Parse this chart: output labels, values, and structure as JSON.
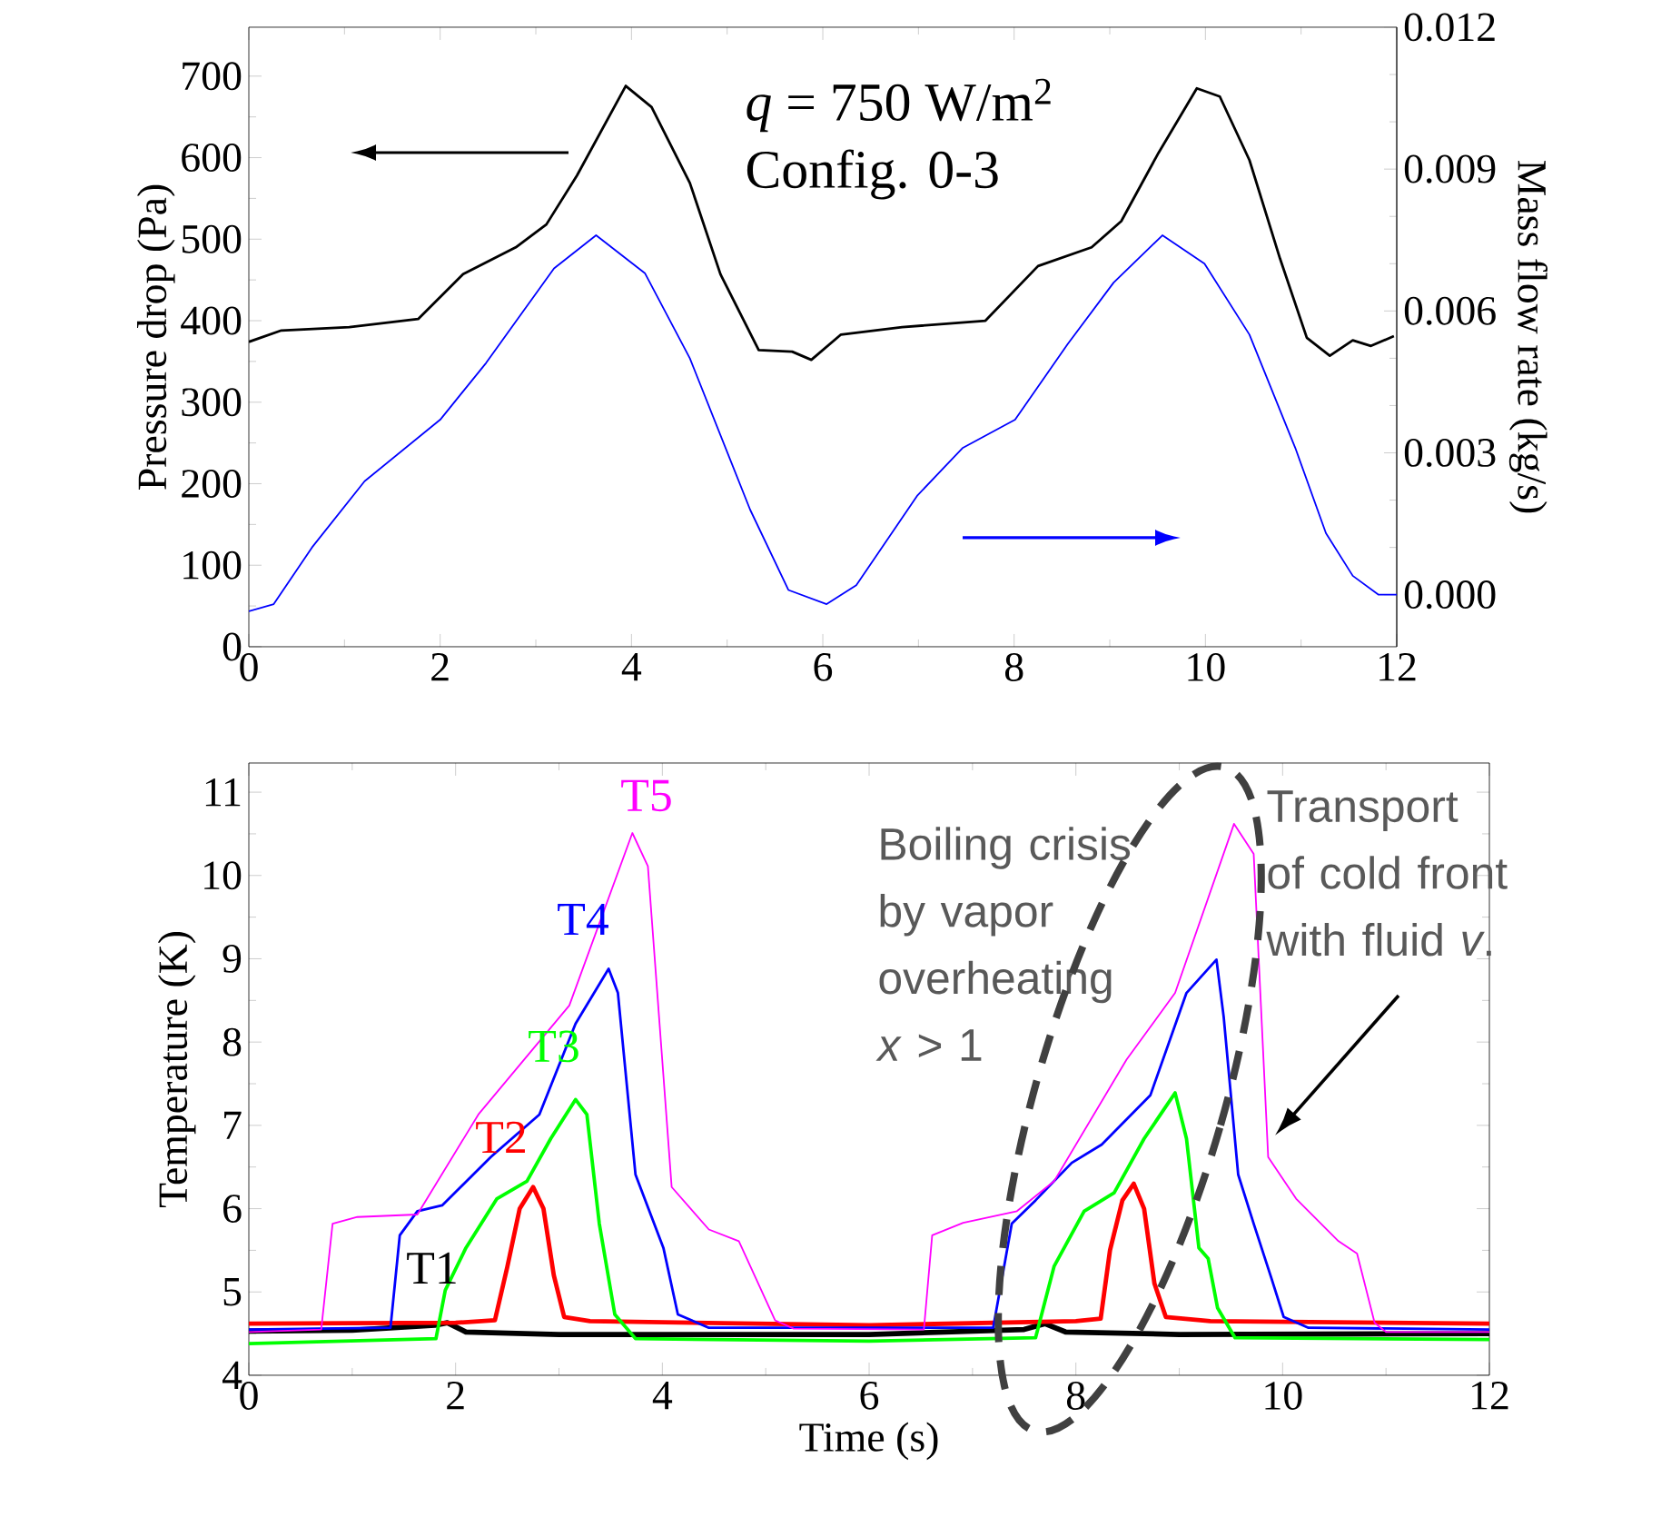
{
  "chart_data": [
    {
      "type": "line",
      "ylabel": "Pressure drop (Pa)",
      "y2label": "Mass flow rate (kg/s)",
      "xlim": [
        0,
        12
      ],
      "xticks": [
        0,
        2,
        4,
        6,
        8,
        10,
        12
      ],
      "ylim": [
        0,
        760
      ],
      "yticks": [
        0,
        100,
        200,
        300,
        400,
        500,
        600,
        700
      ],
      "y2lim": [
        -0.0011,
        0.012
      ],
      "y2ticks": [
        {
          "value": 0,
          "label": "0.000"
        },
        0.003,
        0.006,
        0.009,
        0.012
      ],
      "annotations": [
        "*q* = 750 W/m$^{2}$",
        "Config. 0-3"
      ],
      "series": [
        {
          "color": "#000000",
          "x": [
            0,
            0.34,
            1.05,
            1.77,
            2.24,
            2.79,
            3.11,
            3.43,
            3.94,
            4.21,
            4.61,
            4.93,
            5.33,
            5.68,
            5.88,
            6.19,
            6.83,
            7.7,
            8.25,
            8.81,
            9.12,
            9.51,
            9.91,
            10.15,
            10.46,
            10.78,
            11.06,
            11.3,
            11.54,
            11.73,
            11.97
          ],
          "values": [
            374,
            388,
            392,
            402,
            457,
            490,
            518,
            578,
            688,
            662,
            569,
            457,
            364,
            362,
            352,
            383,
            392,
            400,
            467,
            490,
            522,
            606,
            685,
            675,
            597,
            476,
            379,
            357,
            376,
            369,
            381
          ]
        },
        {
          "color": "#0000ff",
          "axis": "y2",
          "x": [
            0,
            0.26,
            0.66,
            1.21,
            2.0,
            2.48,
            3.19,
            3.63,
            4.14,
            4.61,
            5.24,
            5.64,
            6.04,
            6.35,
            6.99,
            7.46,
            8.01,
            8.56,
            9.04,
            9.55,
            9.99,
            10.46,
            10.94,
            11.26,
            11.54,
            11.81,
            12
          ],
          "values": [
            -0.00035,
            -0.0002,
            0.001,
            0.0024,
            0.0037,
            0.0049,
            0.0069,
            0.0076,
            0.0068,
            0.005,
            0.0018,
            0.0001,
            -0.0002,
            0.0002,
            0.0021,
            0.0031,
            0.0037,
            0.0053,
            0.0066,
            0.0076,
            0.007,
            0.0055,
            0.0031,
            0.0013,
            0.0004,
            0.0,
            0.0
          ]
        }
      ]
    },
    {
      "type": "line",
      "xlabel": "Time (s)",
      "ylabel": "Temperature (K)",
      "xlim": [
        0,
        12
      ],
      "xticks": [
        0,
        2,
        4,
        6,
        8,
        10,
        12
      ],
      "ylim": [
        4,
        11.35
      ],
      "yticks": [
        4,
        5,
        6,
        7,
        8,
        9,
        10,
        11
      ],
      "annotations": [
        "Boiling crisis by vapor overheating *x* > 1",
        "Transport of cold front with fluid *v*."
      ],
      "series": [
        {
          "name": "T1",
          "color": "#000000",
          "x": [
            0,
            1.0,
            1.8,
            1.92,
            2.1,
            3,
            6,
            7.5,
            7.7,
            7.9,
            9,
            12
          ],
          "values": [
            4.53,
            4.54,
            4.6,
            4.63,
            4.52,
            4.49,
            4.49,
            4.55,
            4.62,
            4.52,
            4.49,
            4.5
          ]
        },
        {
          "name": "T2",
          "color": "#ff0000",
          "x": [
            0,
            2.0,
            2.38,
            2.5,
            2.62,
            2.75,
            2.85,
            2.95,
            3.05,
            3.3,
            6,
            8.0,
            8.24,
            8.33,
            8.45,
            8.56,
            8.66,
            8.76,
            8.87,
            9.3,
            12
          ],
          "values": [
            4.62,
            4.63,
            4.66,
            5.3,
            6.0,
            6.26,
            6.0,
            5.2,
            4.7,
            4.65,
            4.6,
            4.65,
            4.68,
            5.5,
            6.1,
            6.3,
            6.0,
            5.1,
            4.7,
            4.65,
            4.62
          ]
        },
        {
          "name": "T3",
          "color": "#00ff00",
          "x": [
            0,
            1.81,
            1.9,
            2.1,
            2.4,
            2.69,
            2.92,
            3.16,
            3.27,
            3.39,
            3.54,
            3.74,
            6,
            7.61,
            7.79,
            8.08,
            8.37,
            8.66,
            8.96,
            9.07,
            9.19,
            9.28,
            9.37,
            9.54,
            12
          ],
          "values": [
            4.38,
            4.44,
            5.02,
            5.53,
            6.12,
            6.33,
            6.84,
            7.31,
            7.13,
            5.82,
            4.73,
            4.44,
            4.41,
            4.45,
            5.31,
            5.97,
            6.19,
            6.84,
            7.39,
            6.84,
            5.53,
            5.4,
            4.81,
            4.45,
            4.43
          ]
        },
        {
          "name": "T4",
          "color": "#0000ff",
          "x": [
            0,
            1.37,
            1.46,
            1.63,
            1.87,
            2.34,
            2.81,
            3.16,
            3.48,
            3.57,
            3.74,
            4.01,
            4.15,
            4.45,
            7.2,
            7.38,
            7.61,
            7.96,
            8.25,
            8.72,
            9.07,
            9.36,
            9.43,
            9.57,
            9.72,
            9.89,
            10.01,
            10.25,
            12
          ],
          "values": [
            4.55,
            4.57,
            5.68,
            5.97,
            6.04,
            6.62,
            7.13,
            8.22,
            8.88,
            8.59,
            6.41,
            5.53,
            4.73,
            4.57,
            4.57,
            5.82,
            6.1,
            6.55,
            6.77,
            7.36,
            8.59,
            8.99,
            8.3,
            6.41,
            5.82,
            5.17,
            4.7,
            4.57,
            4.55
          ]
        },
        {
          "name": "T5",
          "color": "#ff00ff",
          "x": [
            0,
            0.7,
            0.81,
            1.05,
            1.63,
            2.22,
            3.1,
            3.71,
            3.86,
            4.09,
            4.45,
            4.74,
            5.09,
            5.27,
            6.53,
            6.61,
            6.91,
            7.43,
            7.79,
            8.49,
            8.96,
            9.53,
            9.72,
            9.86,
            10.13,
            10.54,
            10.72,
            10.89,
            11.0,
            12
          ],
          "values": [
            4.52,
            4.55,
            5.82,
            5.9,
            5.93,
            7.13,
            8.44,
            10.51,
            10.11,
            6.26,
            5.75,
            5.61,
            4.66,
            4.56,
            4.55,
            5.68,
            5.83,
            5.97,
            6.33,
            7.79,
            8.59,
            10.62,
            10.26,
            6.62,
            6.12,
            5.61,
            5.46,
            4.63,
            4.52,
            4.52
          ]
        }
      ]
    }
  ]
}
